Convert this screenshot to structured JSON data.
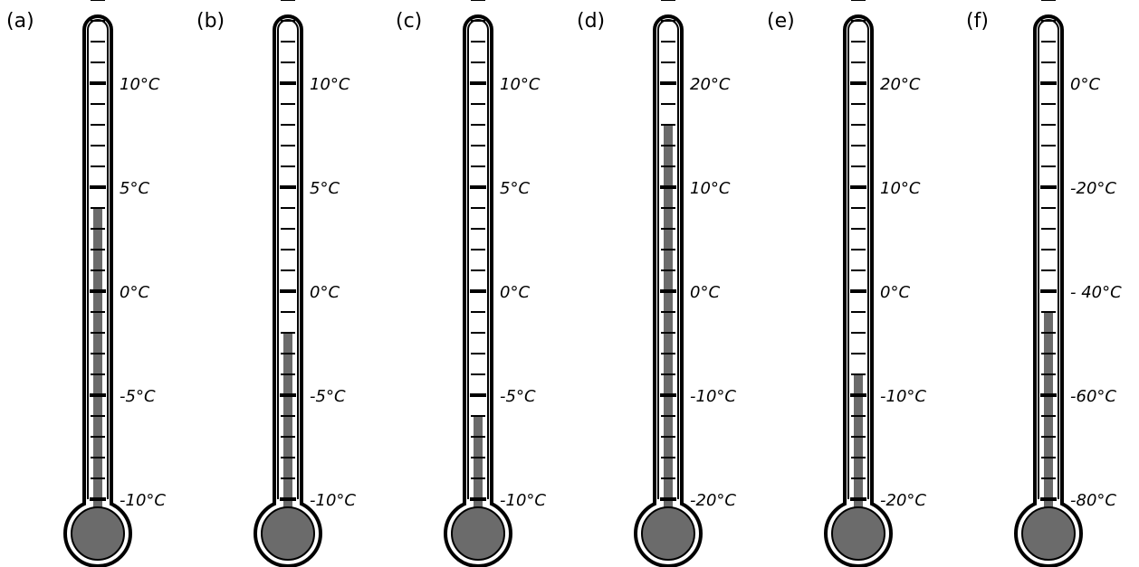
{
  "thermometers": [
    {
      "label": "(a)",
      "scale_labels": [
        "10°C",
        "5°C",
        "0°C",
        "-5°C",
        "-10°C"
      ],
      "scale_values": [
        10,
        5,
        0,
        -5,
        -10
      ],
      "reading": 4,
      "unit": "°C"
    },
    {
      "label": "(b)",
      "scale_labels": [
        "10°C",
        "5°C",
        "0°C",
        "-5°C",
        "-10°C"
      ],
      "scale_values": [
        10,
        5,
        0,
        -5,
        -10
      ],
      "reading": -2,
      "unit": "°C"
    },
    {
      "label": "(c)",
      "scale_labels": [
        "10°C",
        "5°C",
        "0°C",
        "-5°C",
        "-10°C"
      ],
      "scale_values": [
        10,
        5,
        0,
        -5,
        -10
      ],
      "reading": -6,
      "unit": "°C"
    },
    {
      "label": "(d)",
      "scale_labels": [
        "20°C",
        "10°C",
        "0°C",
        "-10°C",
        "-20°C"
      ],
      "scale_values": [
        20,
        10,
        0,
        -10,
        -20
      ],
      "reading": 16,
      "unit": "°C"
    },
    {
      "label": "(e)",
      "scale_labels": [
        "20°C",
        "10°C",
        "0°C",
        "-10°C",
        "-20°C"
      ],
      "scale_values": [
        20,
        10,
        0,
        -10,
        -20
      ],
      "reading": -8,
      "unit": "°C"
    },
    {
      "label": "(f)",
      "scale_labels": [
        "0°C",
        "-20°C",
        "- 40°C",
        "-60°C",
        "-80°C"
      ],
      "scale_values": [
        0,
        -20,
        -40,
        -60,
        -80
      ],
      "reading": -44,
      "unit": "°C"
    }
  ],
  "colors": {
    "outline": "#000000",
    "mercury": "#6b6b6b",
    "bulb_fill": "#6b6b6b",
    "background": "#ffffff"
  },
  "minor_ticks_per_major": 5,
  "extra_ticks_above_top_major": 4
}
